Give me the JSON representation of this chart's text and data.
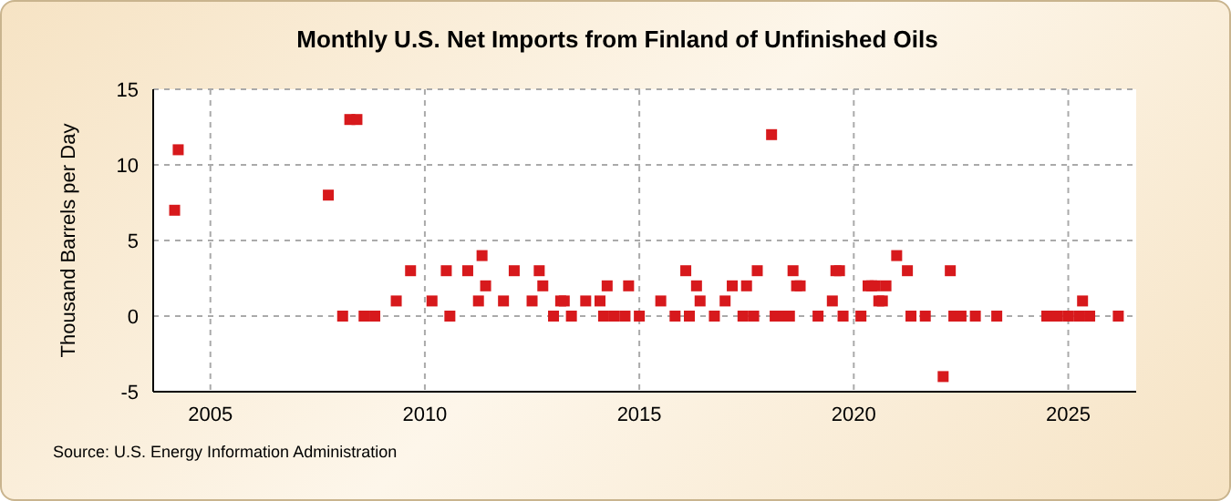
{
  "chart_data": {
    "type": "scatter",
    "title": "Monthly U.S. Net Imports from Finland of Unfinished Oils",
    "ylabel": "Thousand Barrels per Day",
    "annotations": [
      "Source: U.S. Energy Information Administration"
    ],
    "x": [
      "2004-03",
      "2004-04",
      "2007-10",
      "2008-02",
      "2008-04",
      "2008-06",
      "2008-08",
      "2008-11",
      "2009-05",
      "2009-09",
      "2010-03",
      "2010-07",
      "2010-08",
      "2011-01",
      "2011-04",
      "2011-05",
      "2011-06",
      "2011-11",
      "2012-02",
      "2012-07",
      "2012-09",
      "2012-10",
      "2013-01",
      "2013-03",
      "2013-04",
      "2013-06",
      "2013-10",
      "2014-02",
      "2014-03",
      "2014-04",
      "2014-06",
      "2014-09",
      "2014-10",
      "2015-01",
      "2015-07",
      "2015-11",
      "2016-02",
      "2016-03",
      "2016-05",
      "2016-06",
      "2016-10",
      "2017-01",
      "2017-03",
      "2017-06",
      "2017-07",
      "2017-09",
      "2017-10",
      "2018-02",
      "2018-03",
      "2018-04",
      "2018-07",
      "2018-08",
      "2018-09",
      "2018-10",
      "2019-03",
      "2019-07",
      "2019-08",
      "2019-09",
      "2019-10",
      "2020-03",
      "2020-05",
      "2020-06",
      "2020-07",
      "2020-08",
      "2020-09",
      "2020-10",
      "2021-01",
      "2021-04",
      "2021-05",
      "2021-09",
      "2022-02",
      "2022-04",
      "2022-05",
      "2022-07",
      "2022-11",
      "2023-05",
      "2024-07",
      "2024-10",
      "2025-01",
      "2025-04",
      "2025-05",
      "2025-07",
      "2026-03"
    ],
    "series": [
      {
        "color": "#d7191c",
        "values": [
          7,
          11,
          8,
          0,
          13,
          13,
          0,
          0,
          1,
          3,
          1,
          3,
          0,
          3,
          1,
          4,
          2,
          1,
          3,
          1,
          3,
          2,
          0,
          1,
          1,
          0,
          1,
          1,
          0,
          2,
          0,
          0,
          2,
          0,
          1,
          0,
          3,
          0,
          2,
          1,
          0,
          1,
          2,
          0,
          2,
          0,
          3,
          12,
          0,
          0,
          0,
          3,
          2,
          2,
          0,
          1,
          3,
          3,
          0,
          0,
          2,
          2,
          2,
          1,
          1,
          2,
          4,
          3,
          0,
          0,
          -4,
          3,
          0,
          0,
          0,
          0,
          0,
          0,
          0,
          0,
          1,
          0,
          0
        ]
      }
    ],
    "xlim": [
      "2003-09",
      "2026-08"
    ],
    "xticks": [
      "2005",
      "2010",
      "2015",
      "2020",
      "2025"
    ],
    "ylim": [
      -5,
      15
    ],
    "yticks": [
      -5,
      0,
      5,
      10,
      15
    ],
    "grid": true,
    "marker": "square"
  }
}
